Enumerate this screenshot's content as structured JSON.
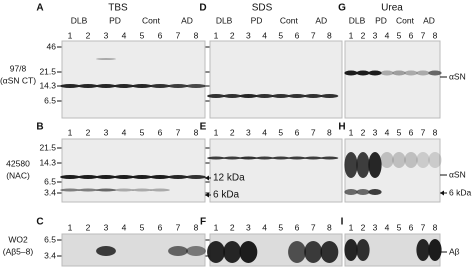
{
  "titles": [
    "TBS",
    "SDS",
    "Urea"
  ],
  "panel_letters": [
    "A",
    "D",
    "G",
    "B",
    "E",
    "H",
    "C",
    "F",
    "I"
  ],
  "groups": [
    "DLB",
    "PD",
    "Cont",
    "AD"
  ],
  "lanes": [
    1,
    2,
    3,
    4,
    5,
    6,
    7,
    8
  ],
  "rows": [
    {
      "label": "97/8",
      "sublabel": "(αSN CT)",
      "markers": [
        46,
        21.5,
        14.3,
        6.5
      ]
    },
    {
      "label": "42580",
      "sublabel": "(NAC)",
      "markers": [
        21.5,
        14.3,
        6.5,
        3.4
      ]
    },
    {
      "label": "WO2",
      "sublabel": "(Aβ5–8)",
      "markers": [
        6.5,
        3.4
      ]
    }
  ],
  "side_labels": [
    "12 kDa",
    "6 kDa"
  ],
  "right_labels": [
    "αSN",
    "αSN",
    "6 kDa",
    "Aβ"
  ]
}
